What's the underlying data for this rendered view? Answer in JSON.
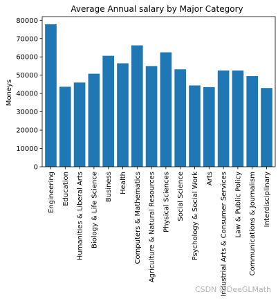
{
  "chart_data": {
    "type": "bar",
    "title": "Average Annual salary by Major Category",
    "xlabel": "",
    "ylabel": "Moneys",
    "categories": [
      "Engineering",
      "Education",
      "Humanities & Liberal Arts",
      "Biology & Life Science",
      "Business",
      "Health",
      "Computers & Mathematics",
      "Agriculture & Natural Resources",
      "Physical Sciences",
      "Social Science",
      "Psychology & Social Work",
      "Arts",
      "Industrial Arts & Consumer Services",
      "Law & Public Policy",
      "Communications & Journalism",
      "Interdisciplinary"
    ],
    "values": [
      77800,
      43700,
      46000,
      50800,
      60600,
      56500,
      66300,
      55000,
      62500,
      53200,
      44400,
      43500,
      52600,
      52600,
      49500,
      43000
    ],
    "ylim": [
      0,
      82000
    ],
    "yticks": [
      0,
      10000,
      20000,
      30000,
      40000,
      50000,
      60000,
      70000,
      80000
    ],
    "bar_color": "#1f77b4",
    "grid": false
  },
  "watermark": "CSDN @DeeGLMath"
}
